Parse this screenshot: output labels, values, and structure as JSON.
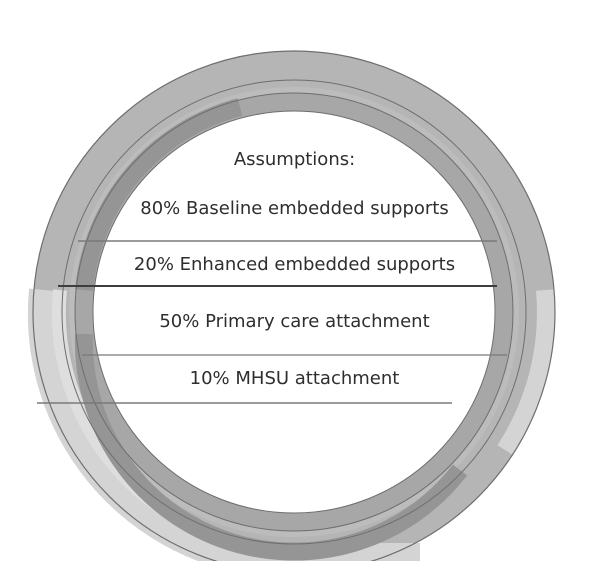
{
  "diagram": {
    "heading": "Assumptions:",
    "assumptions": [
      {
        "text": "80% Baseline embedded supports",
        "value": 80
      },
      {
        "text": "20% Enhanced embedded supports",
        "value": 20
      },
      {
        "text": "50% Primary care attachment",
        "value": 50
      },
      {
        "text": "10% MHSU attachment",
        "value": 10
      }
    ],
    "colors": {
      "ring_outer": "#b5b5b5",
      "ring_middle": "#bcbcbc",
      "ring_inner_dark": "#a7a7a7",
      "ring_inner_darker": "#959595",
      "ring_light": "#d4d4d4",
      "ring_lighter": "#dedede",
      "ring_outline": "#6e6e6e",
      "divider": "#7a7a7a",
      "divider_strong": "#3d3d3d",
      "text": "#2e2e2e"
    }
  }
}
